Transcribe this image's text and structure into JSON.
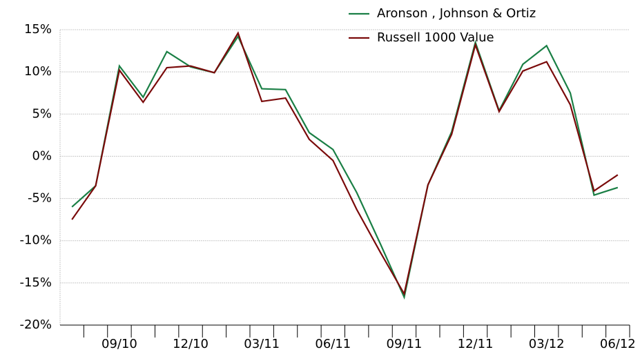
{
  "chart_data": {
    "type": "line",
    "categories": [
      null,
      null,
      "09/10",
      null,
      null,
      "12/10",
      null,
      null,
      "03/11",
      null,
      null,
      "06/11",
      null,
      null,
      "09/11",
      null,
      null,
      "12/11",
      null,
      null,
      "03/12",
      null,
      null,
      "06/12"
    ],
    "series": [
      {
        "name": "Aronson , Johnson & Ortiz",
        "color": "#1a7f45",
        "values": [
          -6.0,
          -3.5,
          10.7,
          7.0,
          12.4,
          10.6,
          9.9,
          14.2,
          8.0,
          7.9,
          2.8,
          0.8,
          -4.3,
          -10.4,
          -16.7,
          -3.4,
          2.9,
          13.5,
          5.4,
          10.9,
          13.1,
          7.5,
          -4.6,
          -3.7
        ]
      },
      {
        "name": "Russell 1000 Value",
        "color": "#7a0a0a",
        "values": [
          -7.5,
          -3.5,
          10.2,
          6.4,
          10.5,
          10.7,
          9.9,
          14.6,
          6.5,
          6.9,
          2.0,
          -0.5,
          -6.3,
          -11.4,
          -16.3,
          -3.4,
          2.6,
          13.2,
          5.3,
          10.1,
          11.2,
          6.1,
          -4.1,
          -2.2
        ]
      }
    ],
    "ylim": [
      -20,
      15
    ],
    "yticks": [
      {
        "value": -20,
        "label": "-20%"
      },
      {
        "value": -15,
        "label": "-15%"
      },
      {
        "value": -10,
        "label": "-10%"
      },
      {
        "value": -5,
        "label": "-5%"
      },
      {
        "value": 0,
        "label": "0%"
      },
      {
        "value": 5,
        "label": "5%"
      },
      {
        "value": 10,
        "label": "10%"
      },
      {
        "value": 15,
        "label": "15%"
      }
    ],
    "grid": true
  }
}
